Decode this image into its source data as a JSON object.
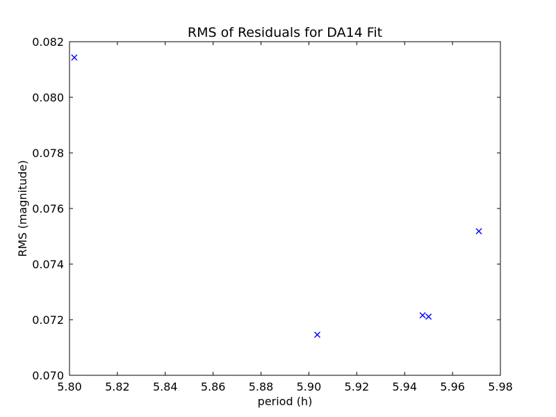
{
  "chart_data": {
    "type": "scatter",
    "title": "RMS of Residuals for DA14 Fit",
    "xlabel": "period (h)",
    "ylabel": "RMS (magnitude)",
    "xlim": [
      5.8,
      5.98
    ],
    "ylim": [
      0.07,
      0.082
    ],
    "xticks": [
      "5.80",
      "5.82",
      "5.84",
      "5.86",
      "5.88",
      "5.90",
      "5.92",
      "5.94",
      "5.96",
      "5.98"
    ],
    "yticks": [
      "0.070",
      "0.072",
      "0.074",
      "0.076",
      "0.078",
      "0.080",
      "0.082"
    ],
    "marker": "x",
    "marker_color": "#0000ff",
    "grid": false,
    "series": [
      {
        "x": [
          5.802,
          5.9035,
          5.9475,
          5.95,
          5.971
        ],
        "y": [
          0.08143,
          0.07146,
          0.07216,
          0.07211,
          0.07518
        ]
      }
    ]
  }
}
